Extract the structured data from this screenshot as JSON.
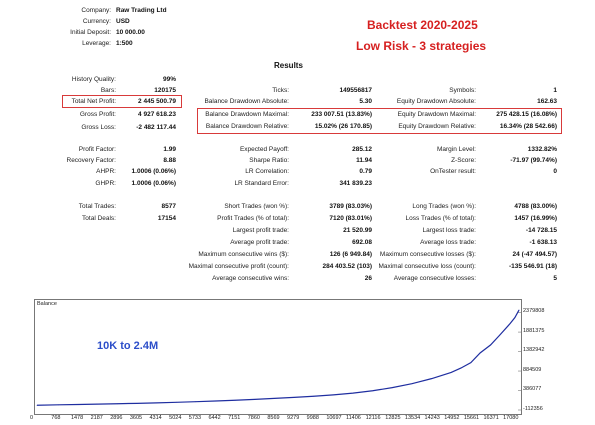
{
  "header": {
    "company_label": "Company:",
    "company": "Raw Trading Ltd",
    "currency_label": "Currency:",
    "currency": "USD",
    "deposit_label": "Initial Deposit:",
    "deposit": "10 000.00",
    "leverage_label": "Leverage:",
    "leverage": "1:500"
  },
  "banner": {
    "title": "Backtest 2020-2025",
    "subtitle": "Low Risk - 3 strategies"
  },
  "results_heading": "Results",
  "stats": {
    "history_quality": {
      "label": "History Quality:",
      "value": "99%"
    },
    "bars": {
      "label": "Bars:",
      "value": "120175"
    },
    "ticks": {
      "label": "Ticks:",
      "value": "149556817"
    },
    "symbols": {
      "label": "Symbols:",
      "value": "1"
    },
    "total_net_profit": {
      "label": "Total Net Profit:",
      "value": "2 445 500.79"
    },
    "balance_dd_abs": {
      "label": "Balance Drawdown Absolute:",
      "value": "5.30"
    },
    "equity_dd_abs": {
      "label": "Equity Drawdown Absolute:",
      "value": "162.63"
    },
    "gross_profit": {
      "label": "Gross Profit:",
      "value": "4 927 618.23"
    },
    "balance_dd_max": {
      "label": "Balance Drawdown Maximal:",
      "value": "233 007.51 (13.83%)"
    },
    "equity_dd_max": {
      "label": "Equity Drawdown Maximal:",
      "value": "275 428.15 (16.08%)"
    },
    "gross_loss": {
      "label": "Gross Loss:",
      "value": "-2 482 117.44"
    },
    "balance_dd_rel": {
      "label": "Balance Drawdown Relative:",
      "value": "15.02% (26 170.85)"
    },
    "equity_dd_rel": {
      "label": "Equity Drawdown Relative:",
      "value": "16.34% (28 542.66)"
    },
    "profit_factor": {
      "label": "Profit Factor:",
      "value": "1.99"
    },
    "expected_payoff": {
      "label": "Expected Payoff:",
      "value": "285.12"
    },
    "margin_level": {
      "label": "Margin Level:",
      "value": "1332.82%"
    },
    "recovery_factor": {
      "label": "Recovery Factor:",
      "value": "8.88"
    },
    "sharpe": {
      "label": "Sharpe Ratio:",
      "value": "11.94"
    },
    "z_score": {
      "label": "Z-Score:",
      "value": "-71.97 (99.74%)"
    },
    "ahpr": {
      "label": "AHPR:",
      "value": "1.0006 (0.06%)"
    },
    "lr_corr": {
      "label": "LR Correlation:",
      "value": "0.79"
    },
    "ontester": {
      "label": "OnTester result:",
      "value": "0"
    },
    "ghpr": {
      "label": "GHPR:",
      "value": "1.0006 (0.06%)"
    },
    "lr_err": {
      "label": "LR Standard Error:",
      "value": "341 839.23"
    },
    "total_trades": {
      "label": "Total Trades:",
      "value": "8577"
    },
    "short_trades": {
      "label": "Short Trades (won %):",
      "value": "3789 (83.03%)"
    },
    "long_trades": {
      "label": "Long Trades (won %):",
      "value": "4788 (83.00%)"
    },
    "total_deals": {
      "label": "Total Deals:",
      "value": "17154"
    },
    "profit_trades": {
      "label": "Profit Trades (% of total):",
      "value": "7120 (83.01%)"
    },
    "loss_trades": {
      "label": "Loss Trades (% of total):",
      "value": "1457 (16.99%)"
    },
    "largest_profit": {
      "label": "Largest profit trade:",
      "value": "21 520.99"
    },
    "largest_loss": {
      "label": "Largest loss trade:",
      "value": "-14 728.15"
    },
    "avg_profit": {
      "label": "Average profit trade:",
      "value": "692.08"
    },
    "avg_loss": {
      "label": "Average loss trade:",
      "value": "-1 638.13"
    },
    "max_consec_wins": {
      "label": "Maximum consecutive wins ($):",
      "value": "126 (6 949.84)"
    },
    "max_consec_losses": {
      "label": "Maximum consecutive losses ($):",
      "value": "24 (-47 494.57)"
    },
    "maximal_consec_profit": {
      "label": "Maximal consecutive profit (count):",
      "value": "284 403.52 (103)"
    },
    "maximal_consec_loss": {
      "label": "Maximal consecutive loss (count):",
      "value": "-135 546.91 (18)"
    },
    "avg_consec_wins": {
      "label": "Average consecutive wins:",
      "value": "26"
    },
    "avg_consec_losses": {
      "label": "Average consecutive losses:",
      "value": "5"
    }
  },
  "chart_data": {
    "type": "line",
    "title": "Balance",
    "annotation": "10K to 2.4M",
    "x_ticks": [
      "0",
      "768",
      "1478",
      "2187",
      "2896",
      "3605",
      "4314",
      "5024",
      "5733",
      "6442",
      "7151",
      "7860",
      "8569",
      "9279",
      "9988",
      "10697",
      "11406",
      "12116",
      "12825",
      "13534",
      "14243",
      "14952",
      "15661",
      "16371",
      "17080"
    ],
    "y_ticks": [
      "2379808",
      "1881375",
      "1382942",
      "884509",
      "386077",
      "-112356"
    ],
    "ylim": [
      -112356,
      2600000
    ],
    "xlim": [
      0,
      17400
    ],
    "line_color": "#1f2ea0",
    "x": [
      0,
      768,
      1478,
      2187,
      2896,
      3605,
      4314,
      5024,
      5733,
      6442,
      7151,
      7860,
      8569,
      9279,
      9988,
      10697,
      11406,
      12116,
      12825,
      13534,
      14243,
      14952,
      15300,
      15661,
      16000,
      16371,
      16700,
      17080,
      17250,
      17400
    ],
    "values": [
      10000,
      20000,
      28000,
      38000,
      48000,
      58000,
      70000,
      85000,
      100000,
      118000,
      138000,
      160000,
      185000,
      210000,
      240000,
      275000,
      320000,
      380000,
      460000,
      560000,
      690000,
      850000,
      960000,
      1100000,
      1350000,
      1550000,
      1800000,
      2100000,
      2250000,
      2445500
    ]
  }
}
